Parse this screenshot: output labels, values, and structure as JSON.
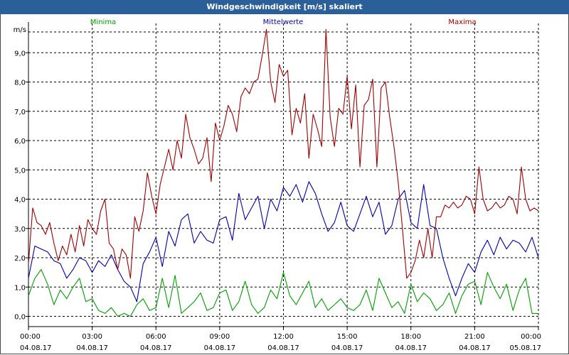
{
  "window": {
    "title": "Windgeschwindigkeit [m/s] skaliert"
  },
  "chart_data": {
    "type": "line",
    "title": "Windgeschwindigkeit [m/s] skaliert",
    "ylabel": "m/s",
    "xlabel": "",
    "ylim": [
      -0.35,
      10.0
    ],
    "xlim": [
      0,
      24
    ],
    "grid": true,
    "yticks": [
      0,
      1,
      2,
      3,
      4,
      5,
      6,
      7,
      8,
      9
    ],
    "ytick_labels": [
      "0,0",
      "1,0",
      "2,0",
      "3,0",
      "4,0",
      "5,0",
      "6,0",
      "7,0",
      "8,0",
      "9,0"
    ],
    "xticks": [
      {
        "h": 0,
        "time": "00:00",
        "date": "04.08.17"
      },
      {
        "h": 3,
        "time": "03:00",
        "date": "04.08.17"
      },
      {
        "h": 6,
        "time": "06:00",
        "date": "04.08.17"
      },
      {
        "h": 9,
        "time": "09:00",
        "date": "04.08.17"
      },
      {
        "h": 12,
        "time": "12:00",
        "date": "04.08.17"
      },
      {
        "h": 15,
        "time": "15:00",
        "date": "04.08.17"
      },
      {
        "h": 18,
        "time": "18:00",
        "date": "04.08.17"
      },
      {
        "h": 21,
        "time": "21:00",
        "date": "04.08.17"
      },
      {
        "h": 24,
        "time": "00:00",
        "date": "05.08.17"
      }
    ],
    "series": [
      {
        "name": "Minima",
        "color": "#00a000",
        "x": [
          0,
          0.3,
          0.6,
          0.9,
          1.2,
          1.5,
          1.8,
          2.1,
          2.4,
          2.7,
          3.0,
          3.3,
          3.6,
          3.9,
          4.2,
          4.5,
          4.8,
          5.1,
          5.4,
          5.7,
          6.0,
          6.3,
          6.6,
          6.9,
          7.2,
          7.5,
          7.8,
          8.1,
          8.4,
          8.7,
          9.0,
          9.3,
          9.6,
          9.9,
          10.2,
          10.5,
          10.8,
          11.1,
          11.4,
          11.7,
          12.0,
          12.3,
          12.6,
          12.9,
          13.2,
          13.5,
          13.8,
          14.1,
          14.4,
          14.7,
          15.0,
          15.3,
          15.6,
          15.9,
          16.2,
          16.5,
          16.8,
          17.1,
          17.4,
          17.7,
          18.0,
          18.3,
          18.6,
          18.9,
          19.2,
          19.5,
          19.8,
          20.1,
          20.4,
          20.7,
          21.0,
          21.3,
          21.6,
          21.9,
          22.2,
          22.5,
          22.8,
          23.1,
          23.4,
          23.7,
          24.0
        ],
        "values": [
          0.7,
          1.3,
          1.6,
          1.1,
          0.4,
          0.9,
          0.6,
          1.0,
          1.3,
          0.5,
          0.6,
          0.2,
          0.1,
          0.3,
          0.0,
          0.1,
          0.0,
          0.4,
          0.6,
          0.2,
          0.3,
          1.3,
          0.3,
          1.4,
          0.1,
          0.3,
          0.5,
          0.8,
          0.2,
          0.3,
          0.8,
          0.9,
          0.2,
          0.5,
          1.2,
          0.4,
          0.1,
          0.3,
          0.9,
          0.6,
          1.5,
          0.7,
          0.4,
          0.8,
          1.2,
          0.3,
          0.6,
          0.2,
          0.4,
          0.6,
          0.3,
          0.2,
          0.4,
          0.9,
          0.2,
          1.3,
          0.8,
          0.3,
          0.5,
          0.1,
          1.1,
          0.5,
          0.8,
          0.6,
          0.2,
          0.4,
          0.8,
          0.1,
          0.7,
          1.1,
          1.2,
          0.4,
          1.5,
          1.0,
          0.6,
          1.1,
          0.2,
          0.9,
          1.3,
          0.1,
          0.1
        ]
      },
      {
        "name": "Mittelwerte",
        "color": "#0000b0",
        "x": [
          0,
          0.3,
          0.6,
          0.9,
          1.2,
          1.5,
          1.8,
          2.1,
          2.4,
          2.7,
          3.0,
          3.3,
          3.6,
          3.9,
          4.2,
          4.5,
          4.8,
          5.1,
          5.4,
          5.7,
          6.0,
          6.3,
          6.6,
          6.9,
          7.2,
          7.5,
          7.8,
          8.1,
          8.4,
          8.7,
          9.0,
          9.3,
          9.6,
          9.9,
          10.2,
          10.5,
          10.8,
          11.1,
          11.4,
          11.7,
          12.0,
          12.3,
          12.6,
          12.9,
          13.2,
          13.5,
          13.8,
          14.1,
          14.4,
          14.7,
          15.0,
          15.3,
          15.6,
          15.9,
          16.2,
          16.5,
          16.8,
          17.1,
          17.4,
          17.7,
          18.0,
          18.3,
          18.6,
          18.9,
          19.2,
          19.5,
          19.8,
          20.1,
          20.4,
          20.7,
          21.0,
          21.3,
          21.6,
          21.9,
          22.2,
          22.5,
          22.8,
          23.1,
          23.4,
          23.7,
          24.0
        ],
        "values": [
          1.3,
          2.4,
          2.3,
          2.2,
          1.9,
          1.8,
          1.3,
          1.6,
          2.0,
          1.9,
          1.5,
          1.9,
          1.7,
          2.1,
          1.6,
          1.2,
          1.0,
          0.5,
          1.8,
          2.2,
          2.7,
          1.7,
          2.9,
          2.4,
          3.3,
          3.5,
          2.5,
          2.9,
          2.6,
          2.5,
          3.3,
          3.4,
          2.6,
          4.2,
          3.3,
          3.7,
          4.1,
          3.0,
          4.0,
          3.6,
          4.4,
          4.1,
          4.5,
          3.9,
          4.6,
          4.2,
          3.5,
          2.9,
          3.2,
          3.9,
          3.1,
          2.9,
          3.5,
          4.1,
          3.4,
          3.9,
          2.8,
          3.1,
          4.0,
          4.3,
          3.2,
          3.0,
          4.5,
          3.1,
          3.0,
          2.0,
          1.3,
          0.7,
          1.3,
          1.8,
          1.5,
          2.2,
          2.6,
          2.1,
          2.7,
          2.3,
          2.6,
          2.5,
          2.2,
          2.7,
          2.0
        ]
      },
      {
        "name": "Maxima",
        "color": "#a00000",
        "x": [
          0,
          0.2,
          0.4,
          0.6,
          0.8,
          1.0,
          1.2,
          1.4,
          1.6,
          1.8,
          2.0,
          2.2,
          2.4,
          2.6,
          2.8,
          3.0,
          3.2,
          3.4,
          3.6,
          3.8,
          4.0,
          4.2,
          4.4,
          4.6,
          4.8,
          5.0,
          5.2,
          5.4,
          5.6,
          5.8,
          6.0,
          6.2,
          6.4,
          6.6,
          6.8,
          7.0,
          7.2,
          7.4,
          7.6,
          7.8,
          8.0,
          8.2,
          8.4,
          8.6,
          8.8,
          9.0,
          9.2,
          9.4,
          9.6,
          9.8,
          10.0,
          10.2,
          10.4,
          10.6,
          10.8,
          11.0,
          11.2,
          11.4,
          11.6,
          11.8,
          12.0,
          12.2,
          12.4,
          12.6,
          12.8,
          13.0,
          13.2,
          13.4,
          13.6,
          13.8,
          14.0,
          14.2,
          14.4,
          14.6,
          14.8,
          15.0,
          15.2,
          15.4,
          15.6,
          15.8,
          16.0,
          16.2,
          16.4,
          16.6,
          16.8,
          17.0,
          17.2,
          17.4,
          17.6,
          17.8,
          18.0,
          18.2,
          18.4,
          18.6,
          18.8,
          19.0,
          19.2,
          19.4,
          19.6,
          19.8,
          20.0,
          20.2,
          20.4,
          20.6,
          20.8,
          21.0,
          21.2,
          21.4,
          21.6,
          21.8,
          22.0,
          22.2,
          22.4,
          22.6,
          22.8,
          23.0,
          23.2,
          23.4,
          23.6,
          23.8,
          24.0
        ],
        "values": [
          1.8,
          3.7,
          3.2,
          3.1,
          2.8,
          3.2,
          2.5,
          1.9,
          2.4,
          2.1,
          2.8,
          2.2,
          3.1,
          2.4,
          3.3,
          3.0,
          2.8,
          3.6,
          4.0,
          2.5,
          2.3,
          1.6,
          2.3,
          2.1,
          1.3,
          3.4,
          2.9,
          3.6,
          4.9,
          4.1,
          3.5,
          4.5,
          5.1,
          5.7,
          5.0,
          6.0,
          5.4,
          6.9,
          6.1,
          5.7,
          5.2,
          5.4,
          6.1,
          4.6,
          6.6,
          6.0,
          6.5,
          7.2,
          6.9,
          6.3,
          7.5,
          7.8,
          7.6,
          8.0,
          8.1,
          8.9,
          9.8,
          8.0,
          7.3,
          8.6,
          8.2,
          8.4,
          6.2,
          7.1,
          6.6,
          7.6,
          5.4,
          6.9,
          6.4,
          5.8,
          9.8,
          6.8,
          5.8,
          7.1,
          6.9,
          8.2,
          6.4,
          7.9,
          5.1,
          7.2,
          7.4,
          8.1,
          5.1,
          7.8,
          8.0,
          6.8,
          5.8,
          4.6,
          3.0,
          1.3,
          1.5,
          1.9,
          2.6,
          2.0,
          3.0,
          2.0,
          3.4,
          3.4,
          3.8,
          3.7,
          3.9,
          3.7,
          3.8,
          4.1,
          4.0,
          3.5,
          5.1,
          4.0,
          3.6,
          3.7,
          3.9,
          3.7,
          3.8,
          4.1,
          4.0,
          3.5,
          5.1,
          4.0,
          3.6,
          3.7,
          3.6
        ]
      }
    ]
  }
}
